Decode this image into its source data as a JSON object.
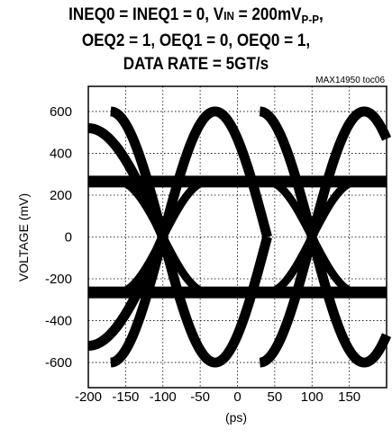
{
  "chart_data": {
    "type": "line",
    "title_line1_prefix": "INEQ0 = INEQ1 = 0, V",
    "title_line1_sub": "IN",
    "title_line1_mid": " = 200mV",
    "title_line1_sub2": "P-P",
    "title_line1_suffix": ",",
    "title_line2": "OEQ2 = 1, OEQ1 = 0, OEQ0 = 1,",
    "title_line3": "DATA RATE = 5GT/s",
    "reference": "MAX14950 toc06",
    "xlabel": "(ps)",
    "ylabel": "VOLTAGE (mV)",
    "xlim": [
      -200,
      200
    ],
    "ylim": [
      -720,
      720
    ],
    "xticks": [
      -200,
      -150,
      -100,
      -50,
      0,
      50,
      100,
      150
    ],
    "yticks": [
      600,
      400,
      200,
      0,
      -200,
      -400,
      -600
    ],
    "grid": true,
    "levels": {
      "high": 265,
      "low": -265,
      "peak": 600,
      "trough": -600
    },
    "crossings": [
      -100,
      100
    ],
    "color": "#000000"
  }
}
